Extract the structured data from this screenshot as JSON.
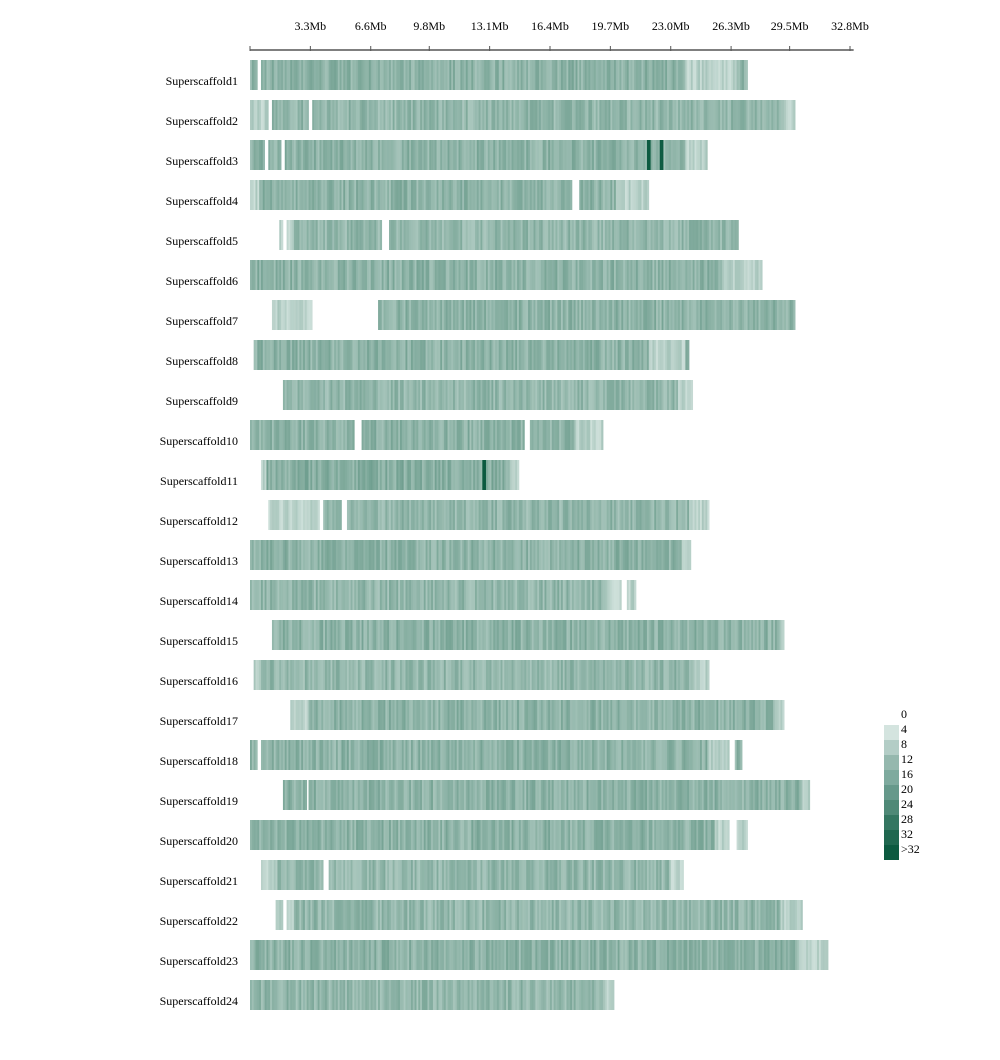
{
  "chart_data": {
    "type": "heatmap",
    "title": "",
    "xlabel": "",
    "ylabel": "",
    "x_tick_labels": [
      "3.3Mb",
      "6.6Mb",
      "9.8Mb",
      "13.1Mb",
      "16.4Mb",
      "19.7Mb",
      "23.0Mb",
      "26.3Mb",
      "29.5Mb",
      "32.8Mb"
    ],
    "x_ticks_mb": [
      3.3,
      6.6,
      9.8,
      13.1,
      16.4,
      19.7,
      23.0,
      26.3,
      29.5,
      32.8
    ],
    "xlim_mb": [
      0,
      33.0
    ],
    "bin_size_mb": 0.1,
    "legend": {
      "position": "right",
      "labels": [
        "0",
        "4",
        "8",
        "12",
        "16",
        "20",
        "24",
        "28",
        "32",
        ">32"
      ],
      "colors": [
        "#ffffff",
        "#d4e4df",
        "#b3cdc6",
        "#95b8ae",
        "#7eaa9e",
        "#66998b",
        "#4f8977",
        "#347661",
        "#1f674f",
        "#0c5a40"
      ]
    },
    "colors": {
      "axis": "#555555",
      "typical": "#85ada3",
      "dense": "#0c5a40"
    },
    "rows": [
      {
        "name": "Superscaffold1",
        "start_mb": 0.0,
        "length_mb": 27.2,
        "typical_density": 14,
        "gaps_mb": [
          [
            0.4,
            0.6
          ]
        ],
        "sparse_mb": [
          [
            23.8,
            26.6
          ]
        ]
      },
      {
        "name": "Superscaffold2",
        "start_mb": 0.0,
        "length_mb": 29.8,
        "typical_density": 13,
        "gaps_mb": [
          [
            1.0,
            1.2
          ],
          [
            3.2,
            3.4
          ]
        ],
        "sparse_mb": [
          [
            0.0,
            1.0
          ],
          [
            29.2,
            29.8
          ]
        ]
      },
      {
        "name": "Superscaffold3",
        "start_mb": 0.0,
        "length_mb": 25.0,
        "typical_density": 14,
        "gaps_mb": [
          [
            0.8,
            1.0
          ],
          [
            1.7,
            1.9
          ]
        ],
        "sparse_mb": [
          [
            23.8,
            25.0
          ]
        ],
        "peaks_mb": [
          21.8,
          22.5
        ]
      },
      {
        "name": "Superscaffold4",
        "start_mb": 0.0,
        "length_mb": 21.8,
        "typical_density": 14,
        "gaps_mb": [
          [
            17.6,
            18.0
          ]
        ],
        "sparse_mb": [
          [
            0.0,
            0.5
          ],
          [
            20.0,
            21.8
          ]
        ]
      },
      {
        "name": "Superscaffold5",
        "start_mb": 1.6,
        "length_mb": 25.1,
        "typical_density": 13,
        "gaps_mb": [
          [
            1.8,
            2.0
          ],
          [
            7.2,
            7.6
          ]
        ],
        "sparse_mb": [
          [
            1.6,
            2.4
          ]
        ]
      },
      {
        "name": "Superscaffold6",
        "start_mb": 0.0,
        "length_mb": 28.0,
        "typical_density": 14,
        "gaps_mb": [],
        "sparse_mb": [
          [
            25.8,
            28.0
          ]
        ]
      },
      {
        "name": "Superscaffold7",
        "start_mb": 1.2,
        "length_mb": 28.6,
        "typical_density": 14,
        "gaps_mb": [
          [
            3.4,
            7.0
          ]
        ],
        "sparse_mb": [
          [
            1.2,
            3.4
          ]
        ]
      },
      {
        "name": "Superscaffold8",
        "start_mb": 0.2,
        "length_mb": 23.8,
        "typical_density": 14,
        "gaps_mb": [],
        "sparse_mb": [
          [
            21.8,
            23.8
          ]
        ]
      },
      {
        "name": "Superscaffold9",
        "start_mb": 1.8,
        "length_mb": 22.4,
        "typical_density": 13,
        "gaps_mb": [],
        "sparse_mb": [
          [
            23.4,
            24.2
          ]
        ]
      },
      {
        "name": "Superscaffold10",
        "start_mb": 0.0,
        "length_mb": 19.3,
        "typical_density": 14,
        "gaps_mb": [
          [
            5.7,
            6.1
          ],
          [
            15.0,
            15.3
          ]
        ],
        "sparse_mb": [
          [
            17.8,
            19.3
          ]
        ]
      },
      {
        "name": "Superscaffold11",
        "start_mb": 0.6,
        "length_mb": 14.1,
        "typical_density": 15,
        "gaps_mb": [],
        "sparse_mb": [
          [
            0.6,
            0.9
          ],
          [
            14.2,
            14.7
          ]
        ],
        "peaks_mb": [
          12.8
        ]
      },
      {
        "name": "Superscaffold12",
        "start_mb": 1.0,
        "length_mb": 24.1,
        "typical_density": 13,
        "gaps_mb": [
          [
            3.8,
            4.0
          ],
          [
            5.0,
            5.3
          ]
        ],
        "sparse_mb": [
          [
            1.0,
            3.8
          ],
          [
            24.0,
            25.1
          ]
        ]
      },
      {
        "name": "Superscaffold13",
        "start_mb": 0.0,
        "length_mb": 24.1,
        "typical_density": 14,
        "gaps_mb": [],
        "sparse_mb": [
          [
            23.6,
            24.1
          ]
        ]
      },
      {
        "name": "Superscaffold14",
        "start_mb": 0.0,
        "length_mb": 21.1,
        "typical_density": 13,
        "gaps_mb": [
          [
            20.3,
            20.6
          ]
        ],
        "sparse_mb": [
          [
            19.4,
            21.1
          ]
        ]
      },
      {
        "name": "Superscaffold15",
        "start_mb": 1.2,
        "length_mb": 28.0,
        "typical_density": 14,
        "gaps_mb": [],
        "sparse_mb": [
          [
            29.0,
            29.2
          ]
        ]
      },
      {
        "name": "Superscaffold16",
        "start_mb": 0.2,
        "length_mb": 24.9,
        "typical_density": 13,
        "gaps_mb": [],
        "sparse_mb": [
          [
            0.2,
            0.6
          ],
          [
            24.2,
            25.1
          ]
        ]
      },
      {
        "name": "Superscaffold17",
        "start_mb": 2.2,
        "length_mb": 27.0,
        "typical_density": 14,
        "gaps_mb": [],
        "sparse_mb": [
          [
            2.2,
            3.2
          ],
          [
            28.7,
            29.2
          ]
        ]
      },
      {
        "name": "Superscaffold18",
        "start_mb": 0.0,
        "length_mb": 26.9,
        "typical_density": 14,
        "gaps_mb": [
          [
            0.4,
            0.6
          ],
          [
            26.2,
            26.5
          ]
        ],
        "sparse_mb": [
          [
            25.0,
            26.2
          ]
        ]
      },
      {
        "name": "Superscaffold19",
        "start_mb": 1.8,
        "length_mb": 28.8,
        "typical_density": 14,
        "gaps_mb": [
          [
            3.1,
            3.2
          ]
        ],
        "sparse_mb": [
          [
            30.2,
            30.6
          ]
        ]
      },
      {
        "name": "Superscaffold20",
        "start_mb": 0.0,
        "length_mb": 27.2,
        "typical_density": 14,
        "gaps_mb": [
          [
            26.2,
            26.6
          ]
        ],
        "sparse_mb": [
          [
            25.4,
            27.2
          ]
        ]
      },
      {
        "name": "Superscaffold21",
        "start_mb": 0.6,
        "length_mb": 23.1,
        "typical_density": 13,
        "gaps_mb": [
          [
            4.0,
            4.3
          ]
        ],
        "sparse_mb": [
          [
            0.6,
            1.5
          ],
          [
            23.0,
            23.7
          ]
        ]
      },
      {
        "name": "Superscaffold22",
        "start_mb": 1.4,
        "length_mb": 28.8,
        "typical_density": 13,
        "gaps_mb": [
          [
            1.8,
            2.0
          ]
        ],
        "sparse_mb": [
          [
            1.4,
            2.4
          ],
          [
            29.0,
            30.2
          ]
        ]
      },
      {
        "name": "Superscaffold23",
        "start_mb": 0.0,
        "length_mb": 31.6,
        "typical_density": 14,
        "gaps_mb": [],
        "sparse_mb": [
          [
            30.0,
            31.6
          ]
        ]
      },
      {
        "name": "Superscaffold24",
        "start_mb": 0.0,
        "length_mb": 19.9,
        "typical_density": 13,
        "gaps_mb": [],
        "sparse_mb": [
          [
            19.3,
            19.9
          ]
        ]
      }
    ]
  }
}
